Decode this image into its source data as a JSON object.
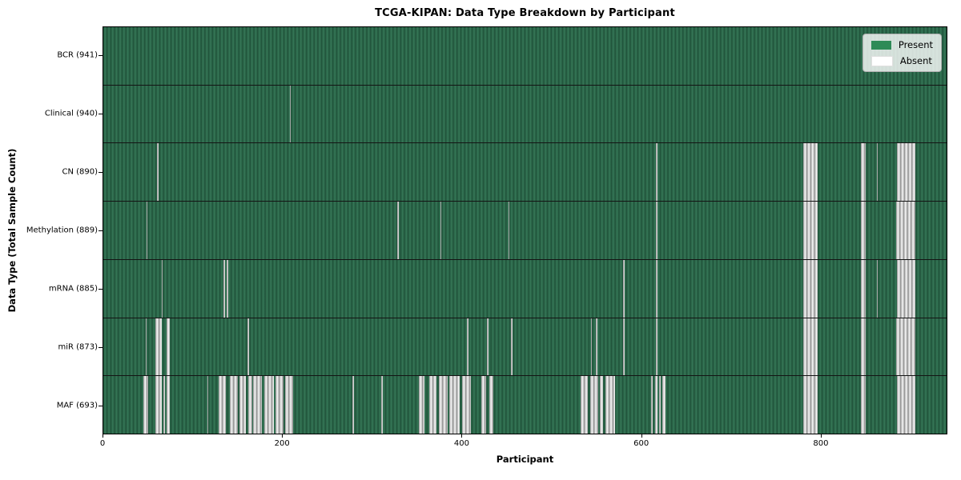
{
  "title": "TCGA-KIPAN: Data Type Breakdown by Participant",
  "x_axis": {
    "label": "Participant",
    "ticks": [
      0,
      200,
      400,
      600,
      800
    ],
    "max": 941
  },
  "y_axis": {
    "label": "Data Type (Total Sample Count)"
  },
  "legend": {
    "present_label": "Present",
    "absent_label": "Absent"
  },
  "colors": {
    "present": "#2e8b57",
    "absent": "#ffffff",
    "row_green_dark": "#20523a",
    "row_green_light": "#367758",
    "absent_gray": "#8f8f8f"
  },
  "chart_data": {
    "type": "heatmap",
    "subtype": "presence-absence-matrix",
    "title": "TCGA-KIPAN: Data Type Breakdown by Participant",
    "xlabel": "Participant",
    "ylabel": "Data Type (Total Sample Count)",
    "xlim": [
      0,
      941
    ],
    "x_ticks": [
      0,
      200,
      400,
      600,
      800
    ],
    "legend_position": "upper right",
    "legend_entries": [
      "Present",
      "Absent"
    ],
    "rows": [
      {
        "label": "BCR (941)",
        "data_type": "BCR",
        "total_samples": 941,
        "absent_ranges": []
      },
      {
        "label": "Clinical (940)",
        "data_type": "Clinical",
        "total_samples": 940,
        "absent_ranges": [
          [
            208,
            209.5
          ]
        ]
      },
      {
        "label": "CN (890)",
        "data_type": "CN",
        "total_samples": 890,
        "absent_ranges": [
          [
            60,
            62
          ],
          [
            617,
            618.5
          ],
          [
            781,
            797
          ],
          [
            845,
            851
          ],
          [
            863,
            864.5
          ],
          [
            886,
            906
          ]
        ]
      },
      {
        "label": "Methylation (889)",
        "data_type": "Methylation",
        "total_samples": 889,
        "absent_ranges": [
          [
            48,
            49.5
          ],
          [
            328,
            329.5
          ],
          [
            376,
            377.5
          ],
          [
            452,
            453.5
          ],
          [
            617,
            618.5
          ],
          [
            781,
            797
          ],
          [
            845,
            851
          ],
          [
            885,
            906
          ]
        ]
      },
      {
        "label": "mRNA (885)",
        "data_type": "mRNA",
        "total_samples": 885,
        "absent_ranges": [
          [
            65,
            66.5
          ],
          [
            134,
            135.5
          ],
          [
            138,
            139.5
          ],
          [
            580,
            581.5
          ],
          [
            617,
            618.5
          ],
          [
            781,
            797
          ],
          [
            845,
            851
          ],
          [
            863,
            864.5
          ],
          [
            886,
            906
          ]
        ]
      },
      {
        "label": "miR (873)",
        "data_type": "miR",
        "total_samples": 873,
        "absent_ranges": [
          [
            47,
            48.5
          ],
          [
            58,
            65
          ],
          [
            71,
            74
          ],
          [
            161,
            162.5
          ],
          [
            406,
            407.5
          ],
          [
            428,
            429.5
          ],
          [
            455,
            456.5
          ],
          [
            544,
            545.5
          ],
          [
            550,
            551.5
          ],
          [
            580,
            581.5
          ],
          [
            617,
            618.5
          ],
          [
            781,
            797
          ],
          [
            845,
            851
          ],
          [
            885,
            906
          ]
        ]
      },
      {
        "label": "MAF (693)",
        "data_type": "MAF",
        "total_samples": 693,
        "absent_ranges": [
          [
            45,
            50
          ],
          [
            58,
            65
          ],
          [
            67,
            68.5
          ],
          [
            71,
            74
          ],
          [
            116,
            117.5
          ],
          [
            129,
            137
          ],
          [
            141,
            150
          ],
          [
            152,
            159
          ],
          [
            162,
            166
          ],
          [
            167,
            177
          ],
          [
            180,
            190
          ],
          [
            192,
            201
          ],
          [
            203,
            212
          ],
          [
            278,
            279.5
          ],
          [
            310,
            311.5
          ],
          [
            352,
            358
          ],
          [
            364,
            372
          ],
          [
            374,
            384
          ],
          [
            386,
            398
          ],
          [
            400,
            410
          ],
          [
            422,
            427
          ],
          [
            431,
            435
          ],
          [
            533,
            541
          ],
          [
            543,
            552
          ],
          [
            554,
            558
          ],
          [
            560,
            571
          ],
          [
            611,
            613
          ],
          [
            616,
            618
          ],
          [
            620,
            622
          ],
          [
            624,
            627
          ],
          [
            781,
            797
          ],
          [
            845,
            851
          ],
          [
            886,
            906
          ]
        ]
      }
    ]
  }
}
